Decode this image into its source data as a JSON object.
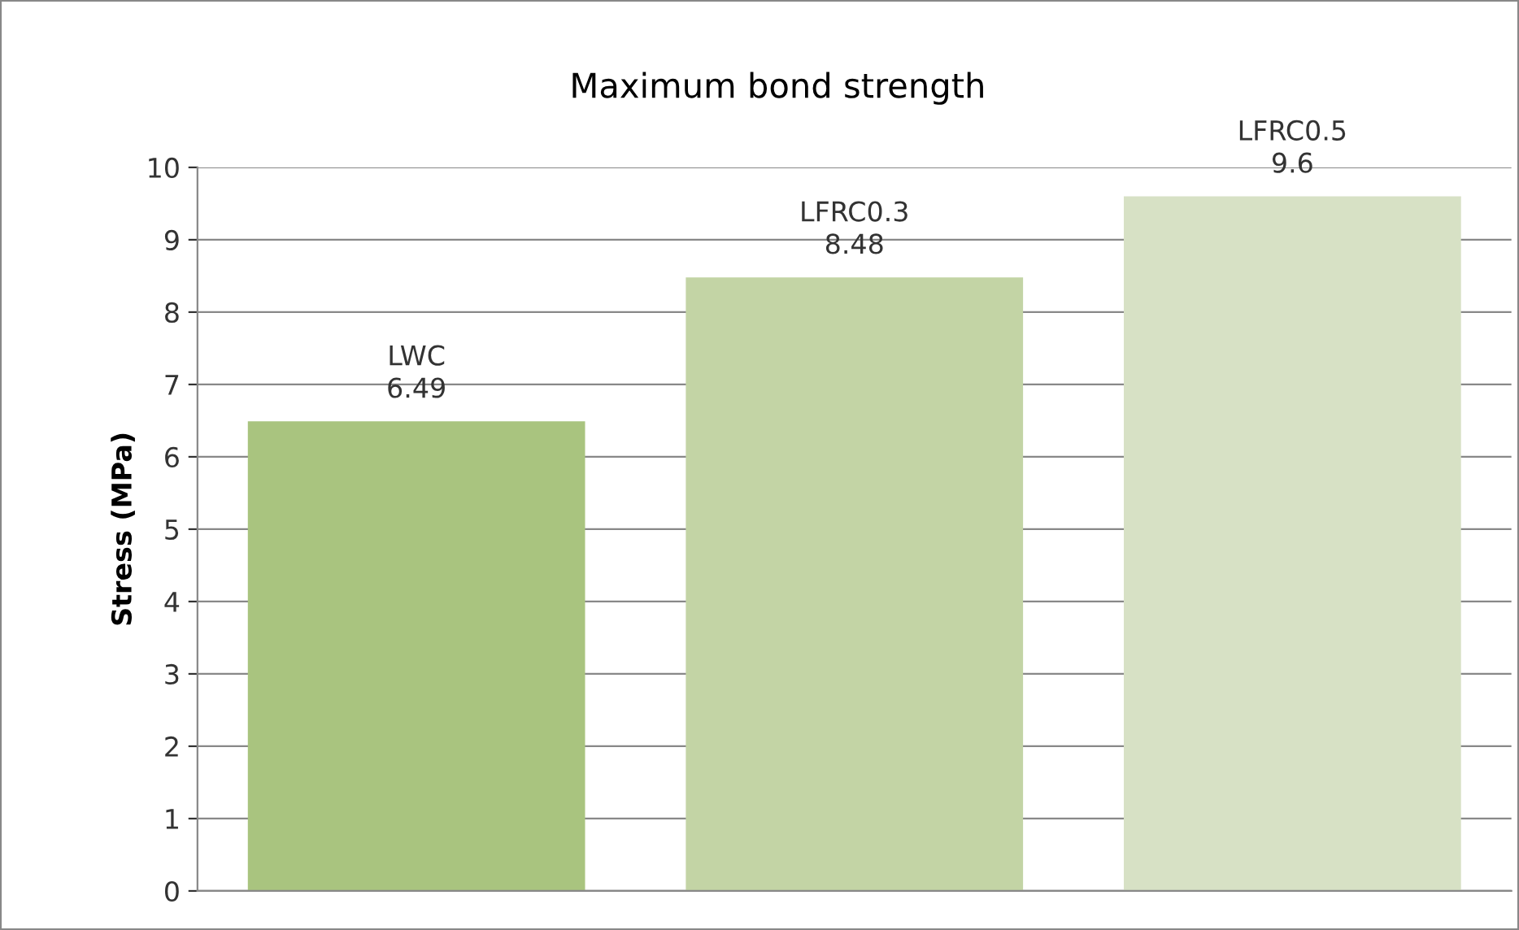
{
  "chart_data": {
    "type": "bar",
    "title": "Maximum bond strength",
    "ylabel": "Stress (MPa)",
    "categories": [
      "LWC",
      "LFRC0.3",
      "LFRC0.5"
    ],
    "values": [
      6.49,
      8.48,
      9.6
    ],
    "colors": [
      "#a9c47f",
      "#c3d4a5",
      "#d7e1c5"
    ],
    "ylim": [
      0,
      10
    ],
    "yticks": [
      0,
      1,
      2,
      3,
      4,
      5,
      6,
      7,
      8,
      9,
      10
    ],
    "grid": "y",
    "data_labels": true,
    "tick_labels": "y"
  }
}
